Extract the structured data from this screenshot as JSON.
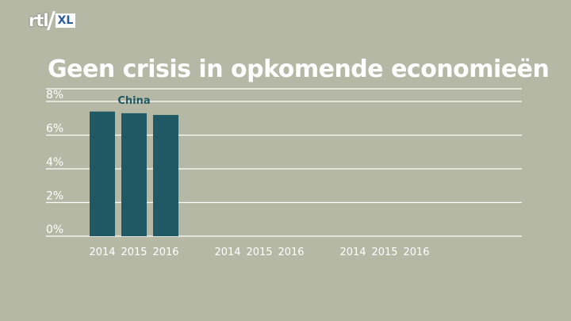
{
  "logo": {
    "brand": "rtl",
    "suffix": "XL"
  },
  "chart_data": {
    "type": "bar",
    "title": "Geen crisis in opkomende economieën",
    "xlabel": "",
    "ylabel": "",
    "ylim": [
      0,
      8
    ],
    "yticks": [
      "0%",
      "2%",
      "4%",
      "6%",
      "8%"
    ],
    "groups": [
      {
        "name": "China",
        "categories": [
          "2014",
          "2015",
          "2016"
        ],
        "values": [
          7.4,
          7.3,
          7.2
        ]
      },
      {
        "name": "",
        "categories": [
          "2014",
          "2015",
          "2016"
        ],
        "values": []
      },
      {
        "name": "",
        "categories": [
          "2014",
          "2015",
          "2016"
        ],
        "values": []
      }
    ],
    "colors": {
      "bar": "#1f5963",
      "label": "#1f5963",
      "grid": "#ffffff",
      "background": "#b6b8a6"
    },
    "grid": true,
    "legend": "none"
  }
}
